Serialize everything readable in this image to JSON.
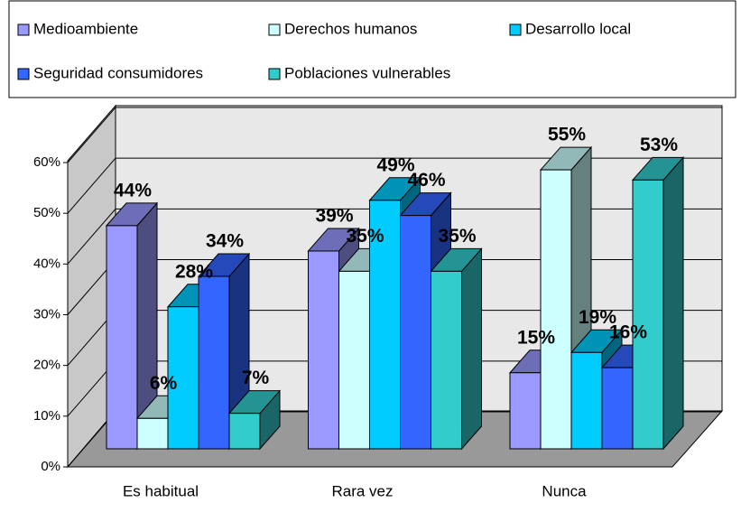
{
  "chart_data": {
    "type": "bar3d",
    "categories": [
      "Es habitual",
      "Rara vez",
      "Nunca"
    ],
    "series": [
      {
        "name": "Medioambiente",
        "color": "#9999ff",
        "values": [
          44,
          39,
          15
        ],
        "value_labels": [
          "44%",
          "39%",
          "15%"
        ]
      },
      {
        "name": "Derechos humanos",
        "color": "#ccffff",
        "values": [
          6,
          35,
          55
        ],
        "value_labels": [
          "6%",
          "35%",
          "55%"
        ]
      },
      {
        "name": "Desarrollo  local",
        "color": "#00ccff",
        "values": [
          28,
          49,
          19
        ],
        "value_labels": [
          "28%",
          "49%",
          "19%"
        ]
      },
      {
        "name": "Seguridad consumidores",
        "color": "#3366ff",
        "values": [
          34,
          46,
          16
        ],
        "value_labels": [
          "34%",
          "46%",
          "16%"
        ]
      },
      {
        "name": "Poblaciones vulnerables",
        "color": "#33cccc",
        "values": [
          7,
          35,
          53
        ],
        "value_labels": [
          "7%",
          "35%",
          "53%"
        ]
      }
    ],
    "ylim": [
      0,
      60
    ],
    "yticks": [
      {
        "value": 0,
        "label": "0%"
      },
      {
        "value": 10,
        "label": "10%"
      },
      {
        "value": 20,
        "label": "20%"
      },
      {
        "value": 30,
        "label": "30%"
      },
      {
        "value": 40,
        "label": "40%"
      },
      {
        "value": 50,
        "label": "50%"
      },
      {
        "value": 60,
        "label": "60%"
      }
    ],
    "grid": true,
    "legend": "top"
  }
}
